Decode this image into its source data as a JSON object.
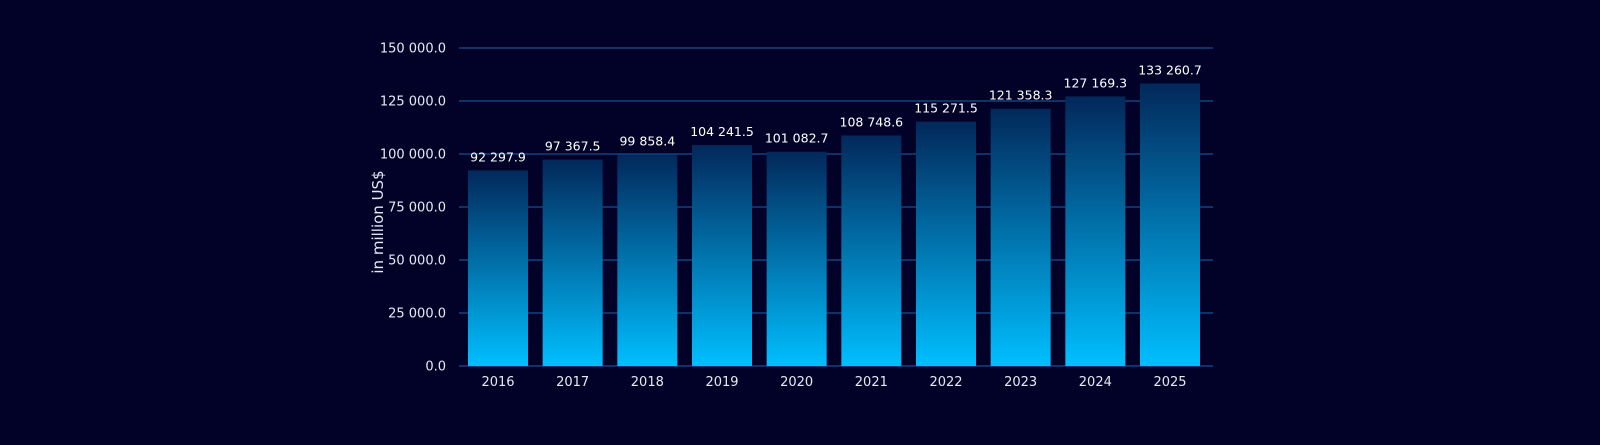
{
  "chart_data": {
    "type": "bar",
    "categories": [
      "2016",
      "2017",
      "2018",
      "2019",
      "2020",
      "2021",
      "2022",
      "2023",
      "2024",
      "2025"
    ],
    "values": [
      92297.9,
      97367.5,
      99858.4,
      104241.5,
      101082.7,
      108748.6,
      115271.5,
      121358.3,
      127169.3,
      133260.7
    ],
    "value_labels": [
      "92 297.9",
      "97 367.5",
      "99 858.4",
      "104 241.5",
      "101 082.7",
      "108 748.6",
      "115 271.5",
      "121 358.3",
      "127 169.3",
      "133 260.7"
    ],
    "ylabel": "in million US$",
    "ylim": [
      0,
      150000
    ],
    "yticks": [
      0,
      25000,
      50000,
      75000,
      100000,
      125000,
      150000
    ],
    "ytick_labels": [
      "0.0",
      "25 000.0",
      "50 000.0",
      "75 000.0",
      "100 000.0",
      "125 000.0",
      "150 000.0"
    ],
    "grid": true,
    "colors": {
      "background": "#020228",
      "bar_top": "#02285a",
      "bar_bottom": "#00bfff",
      "grid": "#1f5fa8",
      "text": "#e6e9f2"
    }
  }
}
